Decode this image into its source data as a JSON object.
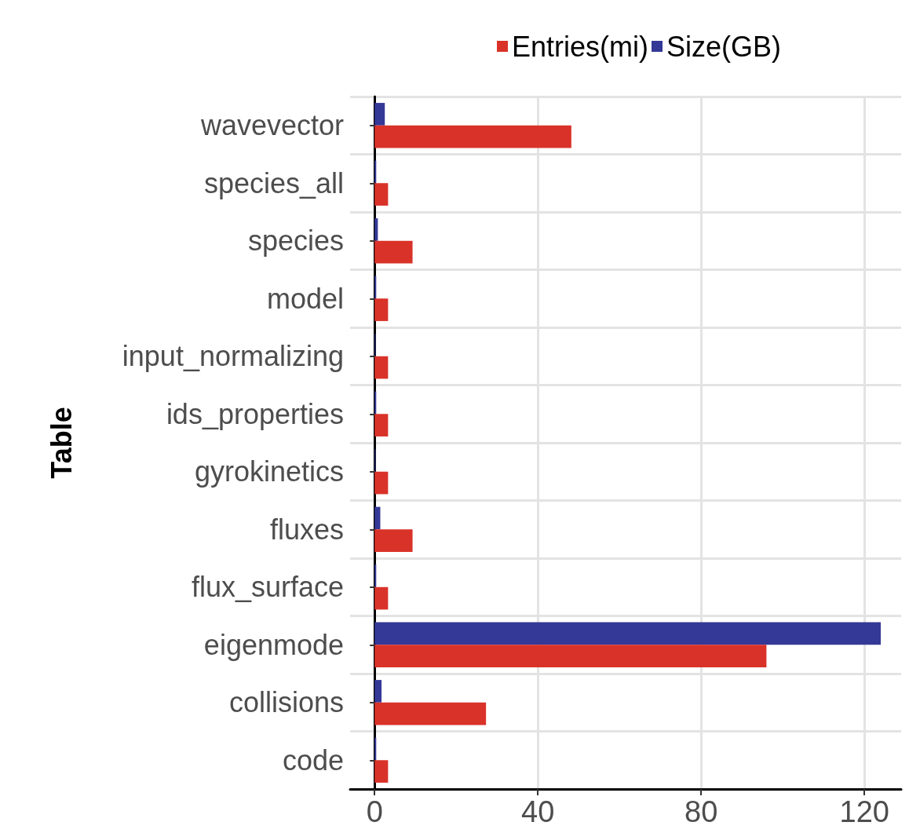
{
  "chart_data": {
    "type": "bar",
    "orientation": "horizontal",
    "ylabel": "Table",
    "categories": [
      "wavevector",
      "species_all",
      "species",
      "model",
      "input_normalizing",
      "ids_properties",
      "gyrokinetics",
      "fluxes",
      "flux_surface",
      "eigenmode",
      "collisions",
      "code"
    ],
    "series": [
      {
        "name": "Entries(mi)",
        "color": "#d93229",
        "values": [
          48.2,
          3.3,
          9.3,
          3.3,
          3.3,
          3.3,
          3.3,
          9.3,
          3.3,
          96,
          27.3,
          3.3
        ]
      },
      {
        "name": "Size(GB)",
        "color": "#343896",
        "values": [
          2.5,
          0.4,
          0.8,
          0.4,
          0.2,
          0.4,
          0.2,
          1.4,
          0.4,
          124,
          1.7,
          0.4
        ]
      }
    ],
    "xlim": [
      -6,
      129
    ],
    "xticks": [
      0,
      40,
      80,
      120
    ],
    "grid": true,
    "legend": "top right"
  }
}
